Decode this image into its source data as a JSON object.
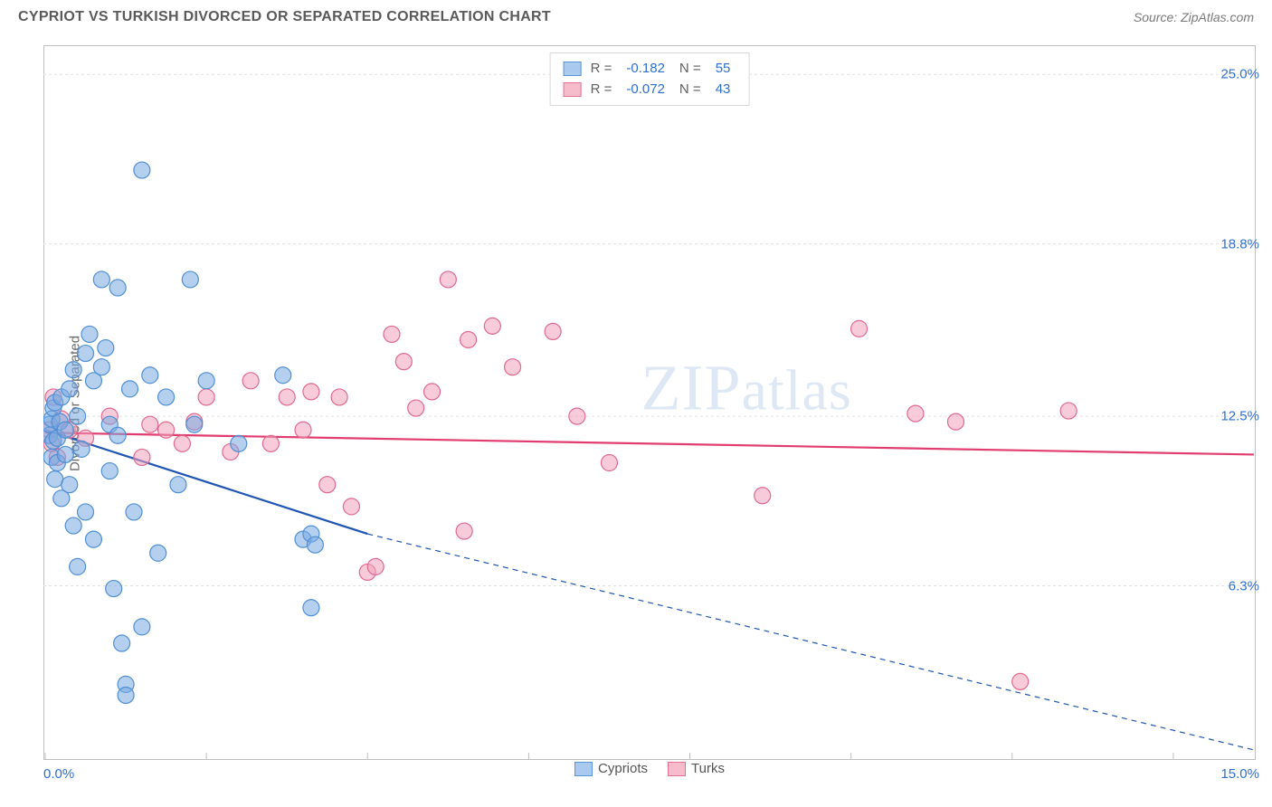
{
  "header": {
    "title": "CYPRIOT VS TURKISH DIVORCED OR SEPARATED CORRELATION CHART",
    "source": "Source: ZipAtlas.com"
  },
  "axis": {
    "y_label": "Divorced or Separated",
    "x_min_label": "0.0%",
    "x_max_label": "15.0%",
    "y_ticks": [
      {
        "value": 25.0,
        "label": "25.0%"
      },
      {
        "value": 18.8,
        "label": "18.8%"
      },
      {
        "value": 12.5,
        "label": "12.5%"
      },
      {
        "value": 6.3,
        "label": "6.3%"
      }
    ],
    "x_ticks": [
      0,
      2,
      4,
      6,
      8,
      10,
      12,
      14
    ],
    "xlim": [
      0,
      15
    ],
    "ylim": [
      0,
      26
    ],
    "grid_color": "#e0e0e0",
    "border_color": "#bfbfbf"
  },
  "watermark": {
    "bold": "ZIP",
    "light": "atlas"
  },
  "legend_stats": {
    "series1": {
      "swatch_fill": "#a9c9ef",
      "swatch_stroke": "#5a97d8",
      "r_label": "R =",
      "r_value": "-0.182",
      "n_label": "N =",
      "n_value": "55"
    },
    "series2": {
      "swatch_fill": "#f6bccb",
      "swatch_stroke": "#e66f92",
      "r_label": "R =",
      "r_value": "-0.072",
      "n_label": "N =",
      "n_value": "43"
    }
  },
  "legend_bottom": {
    "cypriots": {
      "label": "Cypriots",
      "fill": "#a9c9ef",
      "stroke": "#5a97d8"
    },
    "turks": {
      "label": "Turks",
      "fill": "#f6bccb",
      "stroke": "#e66f92"
    }
  },
  "series": {
    "cypriots": {
      "color_fill": "rgba(120,170,225,0.55)",
      "color_stroke": "#4f8fd4",
      "marker_radius": 9,
      "trend": {
        "x1": 0,
        "y1": 12.0,
        "x2": 4.0,
        "y2": 8.2,
        "x2_dash": 15,
        "y2_dash": 0.3,
        "stroke": "#1f56b3",
        "width": 2.2
      },
      "points": [
        [
          0.05,
          11.8
        ],
        [
          0.05,
          12.2
        ],
        [
          0.08,
          11.0
        ],
        [
          0.08,
          12.4
        ],
        [
          0.1,
          11.6
        ],
        [
          0.1,
          12.8
        ],
        [
          0.12,
          13.0
        ],
        [
          0.12,
          10.2
        ],
        [
          0.15,
          10.8
        ],
        [
          0.15,
          11.7
        ],
        [
          0.18,
          12.3
        ],
        [
          0.2,
          9.5
        ],
        [
          0.2,
          13.2
        ],
        [
          0.25,
          11.1
        ],
        [
          0.25,
          12.0
        ],
        [
          0.3,
          10.0
        ],
        [
          0.3,
          13.5
        ],
        [
          0.35,
          14.2
        ],
        [
          0.35,
          8.5
        ],
        [
          0.4,
          7.0
        ],
        [
          0.4,
          12.5
        ],
        [
          0.45,
          11.3
        ],
        [
          0.5,
          14.8
        ],
        [
          0.5,
          9.0
        ],
        [
          0.55,
          15.5
        ],
        [
          0.6,
          13.8
        ],
        [
          0.6,
          8.0
        ],
        [
          0.7,
          17.5
        ],
        [
          0.7,
          14.3
        ],
        [
          0.75,
          15.0
        ],
        [
          0.8,
          10.5
        ],
        [
          0.8,
          12.2
        ],
        [
          0.85,
          6.2
        ],
        [
          0.9,
          17.2
        ],
        [
          0.9,
          11.8
        ],
        [
          0.95,
          4.2
        ],
        [
          1.0,
          2.7
        ],
        [
          1.0,
          2.3
        ],
        [
          1.05,
          13.5
        ],
        [
          1.1,
          9.0
        ],
        [
          1.2,
          4.8
        ],
        [
          1.2,
          21.5
        ],
        [
          1.3,
          14.0
        ],
        [
          1.4,
          7.5
        ],
        [
          1.5,
          13.2
        ],
        [
          1.65,
          10.0
        ],
        [
          1.8,
          17.5
        ],
        [
          1.85,
          12.2
        ],
        [
          2.0,
          13.8
        ],
        [
          2.4,
          11.5
        ],
        [
          2.95,
          14.0
        ],
        [
          3.2,
          8.0
        ],
        [
          3.3,
          8.2
        ],
        [
          3.3,
          5.5
        ],
        [
          3.35,
          7.8
        ]
      ]
    },
    "turks": {
      "color_fill": "rgba(240,160,185,0.55)",
      "color_stroke": "#e06a8e",
      "marker_radius": 9,
      "trend": {
        "x1": 0,
        "y1": 11.9,
        "x2": 15,
        "y2": 11.1,
        "stroke": "#e13d70",
        "width": 2.2
      },
      "points": [
        [
          0.05,
          12.0
        ],
        [
          0.08,
          11.5
        ],
        [
          0.1,
          13.2
        ],
        [
          0.15,
          11.0
        ],
        [
          0.2,
          12.4
        ],
        [
          0.3,
          12.0
        ],
        [
          0.5,
          11.7
        ],
        [
          0.8,
          12.5
        ],
        [
          1.2,
          11.0
        ],
        [
          1.3,
          12.2
        ],
        [
          1.5,
          12.0
        ],
        [
          1.7,
          11.5
        ],
        [
          1.85,
          12.3
        ],
        [
          2.0,
          13.2
        ],
        [
          2.3,
          11.2
        ],
        [
          2.55,
          13.8
        ],
        [
          2.8,
          11.5
        ],
        [
          3.0,
          13.2
        ],
        [
          3.2,
          12.0
        ],
        [
          3.3,
          13.4
        ],
        [
          3.5,
          10.0
        ],
        [
          3.65,
          13.2
        ],
        [
          3.8,
          9.2
        ],
        [
          4.0,
          6.8
        ],
        [
          4.1,
          7.0
        ],
        [
          4.3,
          15.5
        ],
        [
          4.45,
          14.5
        ],
        [
          4.6,
          12.8
        ],
        [
          4.8,
          13.4
        ],
        [
          5.0,
          17.5
        ],
        [
          5.2,
          8.3
        ],
        [
          5.25,
          15.3
        ],
        [
          5.55,
          15.8
        ],
        [
          5.8,
          14.3
        ],
        [
          6.3,
          15.6
        ],
        [
          6.6,
          12.5
        ],
        [
          7.0,
          10.8
        ],
        [
          8.9,
          9.6
        ],
        [
          10.1,
          15.7
        ],
        [
          10.8,
          12.6
        ],
        [
          12.1,
          2.8
        ],
        [
          12.7,
          12.7
        ],
        [
          11.3,
          12.3
        ]
      ]
    }
  }
}
